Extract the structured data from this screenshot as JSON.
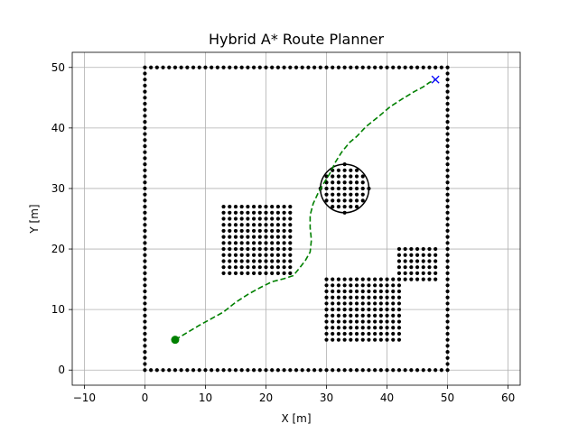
{
  "chart_data": {
    "type": "scatter",
    "title": "Hybrid A* Route Planner",
    "xlabel": "X [m]",
    "ylabel": "Y [m]",
    "xlim": [
      -12,
      62
    ],
    "ylim": [
      -2.5,
      52.5
    ],
    "xticks": [
      -10,
      0,
      10,
      20,
      30,
      40,
      50,
      60
    ],
    "yticks": [
      0,
      10,
      20,
      30,
      40,
      50
    ],
    "grid": true,
    "colors": {
      "obstacle": "#000000",
      "path": "#008000",
      "start": "#008000",
      "goal": "#0000ff"
    },
    "obstacles": {
      "boundary": {
        "x": [
          0,
          50
        ],
        "y": [
          0,
          50
        ],
        "step": 1
      },
      "rectangles": [
        {
          "x": [
            13,
            24
          ],
          "y": [
            16,
            27
          ],
          "step": 1
        },
        {
          "x": [
            30,
            42
          ],
          "y": [
            5,
            15
          ],
          "step": 1
        },
        {
          "x": [
            42,
            48
          ],
          "y": [
            15,
            20
          ],
          "step": 1
        }
      ],
      "circle": {
        "center": [
          33,
          30
        ],
        "radius": 4,
        "step": 1
      }
    },
    "path": {
      "x": [
        5,
        7,
        9,
        11,
        13,
        15,
        17,
        19,
        21,
        23,
        24.5,
        25.5,
        26.5,
        27.3,
        27.5,
        27.3,
        27.3,
        27.8,
        28.6,
        29.5,
        30.5,
        31.5,
        32.5,
        33.8,
        35,
        36.5,
        38.5,
        40.5,
        42.5,
        44.5,
        46,
        47,
        48
      ],
      "y": [
        5,
        6.2,
        7.4,
        8.5,
        9.6,
        11.2,
        12.5,
        13.6,
        14.6,
        15.1,
        15.6,
        16.8,
        18.1,
        19.5,
        21.5,
        23.5,
        25.6,
        27.5,
        29.2,
        30.8,
        32.4,
        34.4,
        36,
        37.6,
        38.6,
        40.2,
        41.8,
        43.5,
        44.8,
        46,
        46.8,
        47.5,
        48
      ]
    },
    "start": {
      "x": 5,
      "y": 5
    },
    "goal": {
      "x": 48,
      "y": 48
    }
  }
}
